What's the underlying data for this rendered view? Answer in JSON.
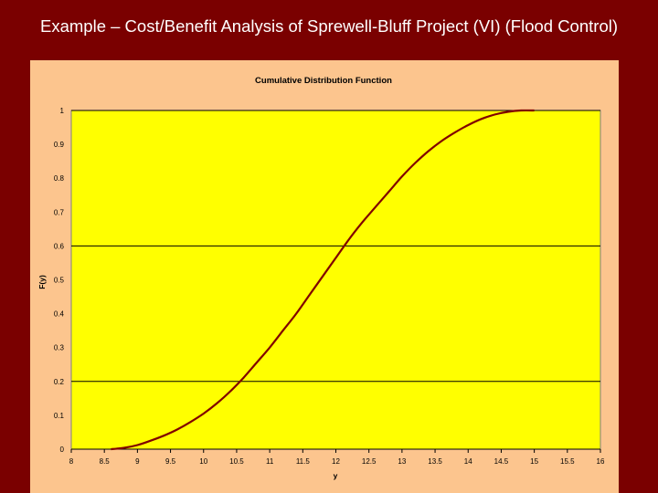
{
  "slide": {
    "title": "Example – Cost/Benefit Analysis of Sprewell-Bluff Project (VI) (Flood Control)"
  },
  "colors": {
    "slide_background": "#7a0000",
    "chart_area": "#fcc58e",
    "plot_area": "#ffff00",
    "curve": "#800000",
    "gridline": "#000000"
  },
  "chart_data": {
    "type": "line",
    "title": "Cumulative Distribution Function",
    "xlabel": "y",
    "ylabel": "F(y)",
    "xlim": [
      8,
      16
    ],
    "ylim": [
      0,
      1
    ],
    "x_ticks": [
      "8",
      "8.5",
      "9",
      "9.5",
      "10",
      "10.5",
      "11",
      "11.5",
      "12",
      "12.5",
      "13",
      "13.5",
      "14",
      "14.5",
      "15",
      "15.5",
      "16"
    ],
    "y_ticks": [
      "0",
      "0.1",
      "0.2",
      "0.3",
      "0.4",
      "0.5",
      "0.6",
      "0.7",
      "0.8",
      "0.9",
      "1"
    ],
    "gridlines_y": [
      0.2,
      0.6,
      1
    ],
    "legend": "none",
    "series": [
      {
        "x": [
          8.6,
          8.8,
          9.0,
          9.2,
          9.4,
          9.6,
          9.8,
          10.0,
          10.2,
          10.4,
          10.6,
          10.8,
          11.0,
          11.2,
          11.4,
          11.6,
          11.8,
          12.0,
          12.2,
          12.4,
          12.6,
          12.8,
          13.0,
          13.2,
          13.4,
          13.6,
          13.8,
          14.0,
          14.2,
          14.4,
          14.6,
          14.8,
          15.0
        ],
        "y": [
          0.0,
          0.004,
          0.012,
          0.025,
          0.04,
          0.058,
          0.08,
          0.105,
          0.135,
          0.17,
          0.21,
          0.255,
          0.3,
          0.35,
          0.4,
          0.455,
          0.51,
          0.565,
          0.62,
          0.67,
          0.715,
          0.76,
          0.805,
          0.845,
          0.88,
          0.91,
          0.935,
          0.957,
          0.975,
          0.988,
          0.996,
          1.0,
          1.0
        ]
      }
    ]
  }
}
